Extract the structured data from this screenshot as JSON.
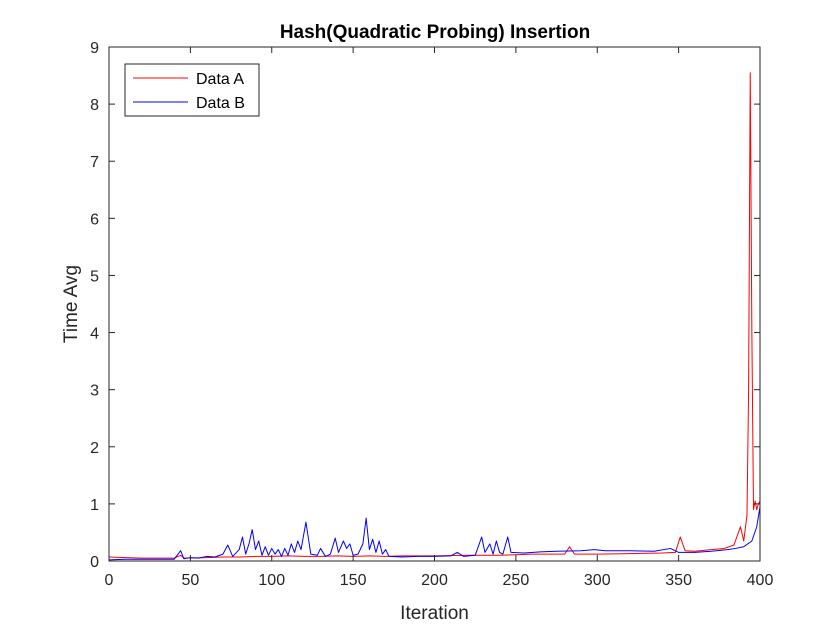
{
  "chart_data": {
    "type": "line",
    "title": "Hash(Quadratic Probing) Insertion",
    "xlabel": "Iteration",
    "ylabel": "Time Avg",
    "xlim": [
      0,
      400
    ],
    "ylim": [
      0,
      9
    ],
    "xticks": [
      0,
      50,
      100,
      150,
      200,
      250,
      300,
      350,
      400
    ],
    "yticks": [
      0,
      1,
      2,
      3,
      4,
      5,
      6,
      7,
      8,
      9
    ],
    "grid": false,
    "legend_position": "top-left",
    "series": [
      {
        "name": "Data A",
        "color": "#ff0000",
        "points": [
          [
            0,
            0.07
          ],
          [
            10,
            0.06
          ],
          [
            20,
            0.05
          ],
          [
            30,
            0.05
          ],
          [
            40,
            0.05
          ],
          [
            44,
            0.1
          ],
          [
            46,
            0.05
          ],
          [
            60,
            0.06
          ],
          [
            70,
            0.07
          ],
          [
            80,
            0.07
          ],
          [
            90,
            0.08
          ],
          [
            100,
            0.08
          ],
          [
            110,
            0.09
          ],
          [
            120,
            0.08
          ],
          [
            130,
            0.08
          ],
          [
            140,
            0.09
          ],
          [
            150,
            0.08
          ],
          [
            160,
            0.09
          ],
          [
            170,
            0.08
          ],
          [
            180,
            0.09
          ],
          [
            200,
            0.09
          ],
          [
            220,
            0.1
          ],
          [
            240,
            0.1
          ],
          [
            260,
            0.12
          ],
          [
            280,
            0.12
          ],
          [
            283,
            0.25
          ],
          [
            286,
            0.12
          ],
          [
            300,
            0.12
          ],
          [
            320,
            0.13
          ],
          [
            340,
            0.14
          ],
          [
            348,
            0.15
          ],
          [
            351,
            0.42
          ],
          [
            354,
            0.18
          ],
          [
            360,
            0.17
          ],
          [
            370,
            0.2
          ],
          [
            378,
            0.22
          ],
          [
            384,
            0.28
          ],
          [
            388,
            0.6
          ],
          [
            390,
            0.35
          ],
          [
            392,
            0.8
          ],
          [
            393,
            3.0
          ],
          [
            394,
            8.55
          ],
          [
            395,
            4.0
          ],
          [
            396,
            0.9
          ],
          [
            397,
            1.05
          ],
          [
            398,
            0.9
          ],
          [
            399,
            1.0
          ],
          [
            400,
            1.05
          ]
        ]
      },
      {
        "name": "Data B",
        "color": "#0000ff",
        "points": [
          [
            0,
            0.02
          ],
          [
            10,
            0.03
          ],
          [
            20,
            0.03
          ],
          [
            30,
            0.03
          ],
          [
            40,
            0.03
          ],
          [
            44,
            0.18
          ],
          [
            46,
            0.04
          ],
          [
            50,
            0.06
          ],
          [
            55,
            0.05
          ],
          [
            60,
            0.08
          ],
          [
            65,
            0.07
          ],
          [
            70,
            0.12
          ],
          [
            73,
            0.28
          ],
          [
            76,
            0.08
          ],
          [
            80,
            0.2
          ],
          [
            82,
            0.42
          ],
          [
            84,
            0.12
          ],
          [
            86,
            0.3
          ],
          [
            88,
            0.55
          ],
          [
            90,
            0.2
          ],
          [
            92,
            0.35
          ],
          [
            94,
            0.1
          ],
          [
            96,
            0.25
          ],
          [
            98,
            0.1
          ],
          [
            100,
            0.22
          ],
          [
            102,
            0.12
          ],
          [
            104,
            0.2
          ],
          [
            106,
            0.08
          ],
          [
            108,
            0.22
          ],
          [
            110,
            0.1
          ],
          [
            112,
            0.3
          ],
          [
            114,
            0.15
          ],
          [
            116,
            0.35
          ],
          [
            118,
            0.2
          ],
          [
            121,
            0.68
          ],
          [
            124,
            0.12
          ],
          [
            128,
            0.1
          ],
          [
            130,
            0.22
          ],
          [
            133,
            0.08
          ],
          [
            136,
            0.12
          ],
          [
            139,
            0.4
          ],
          [
            141,
            0.15
          ],
          [
            144,
            0.35
          ],
          [
            146,
            0.22
          ],
          [
            148,
            0.3
          ],
          [
            150,
            0.1
          ],
          [
            153,
            0.12
          ],
          [
            156,
            0.3
          ],
          [
            158,
            0.75
          ],
          [
            160,
            0.2
          ],
          [
            162,
            0.38
          ],
          [
            164,
            0.15
          ],
          [
            166,
            0.35
          ],
          [
            168,
            0.12
          ],
          [
            170,
            0.2
          ],
          [
            172,
            0.08
          ],
          [
            180,
            0.07
          ],
          [
            190,
            0.08
          ],
          [
            200,
            0.08
          ],
          [
            210,
            0.09
          ],
          [
            214,
            0.15
          ],
          [
            218,
            0.08
          ],
          [
            225,
            0.1
          ],
          [
            229,
            0.42
          ],
          [
            231,
            0.15
          ],
          [
            234,
            0.3
          ],
          [
            236,
            0.12
          ],
          [
            238,
            0.35
          ],
          [
            240,
            0.15
          ],
          [
            242,
            0.12
          ],
          [
            245,
            0.42
          ],
          [
            247,
            0.15
          ],
          [
            255,
            0.14
          ],
          [
            265,
            0.16
          ],
          [
            275,
            0.17
          ],
          [
            290,
            0.18
          ],
          [
            298,
            0.2
          ],
          [
            305,
            0.18
          ],
          [
            320,
            0.18
          ],
          [
            335,
            0.17
          ],
          [
            345,
            0.22
          ],
          [
            350,
            0.15
          ],
          [
            360,
            0.15
          ],
          [
            370,
            0.17
          ],
          [
            380,
            0.2
          ],
          [
            385,
            0.22
          ],
          [
            390,
            0.25
          ],
          [
            395,
            0.35
          ],
          [
            398,
            0.6
          ],
          [
            400,
            0.95
          ]
        ]
      }
    ]
  }
}
